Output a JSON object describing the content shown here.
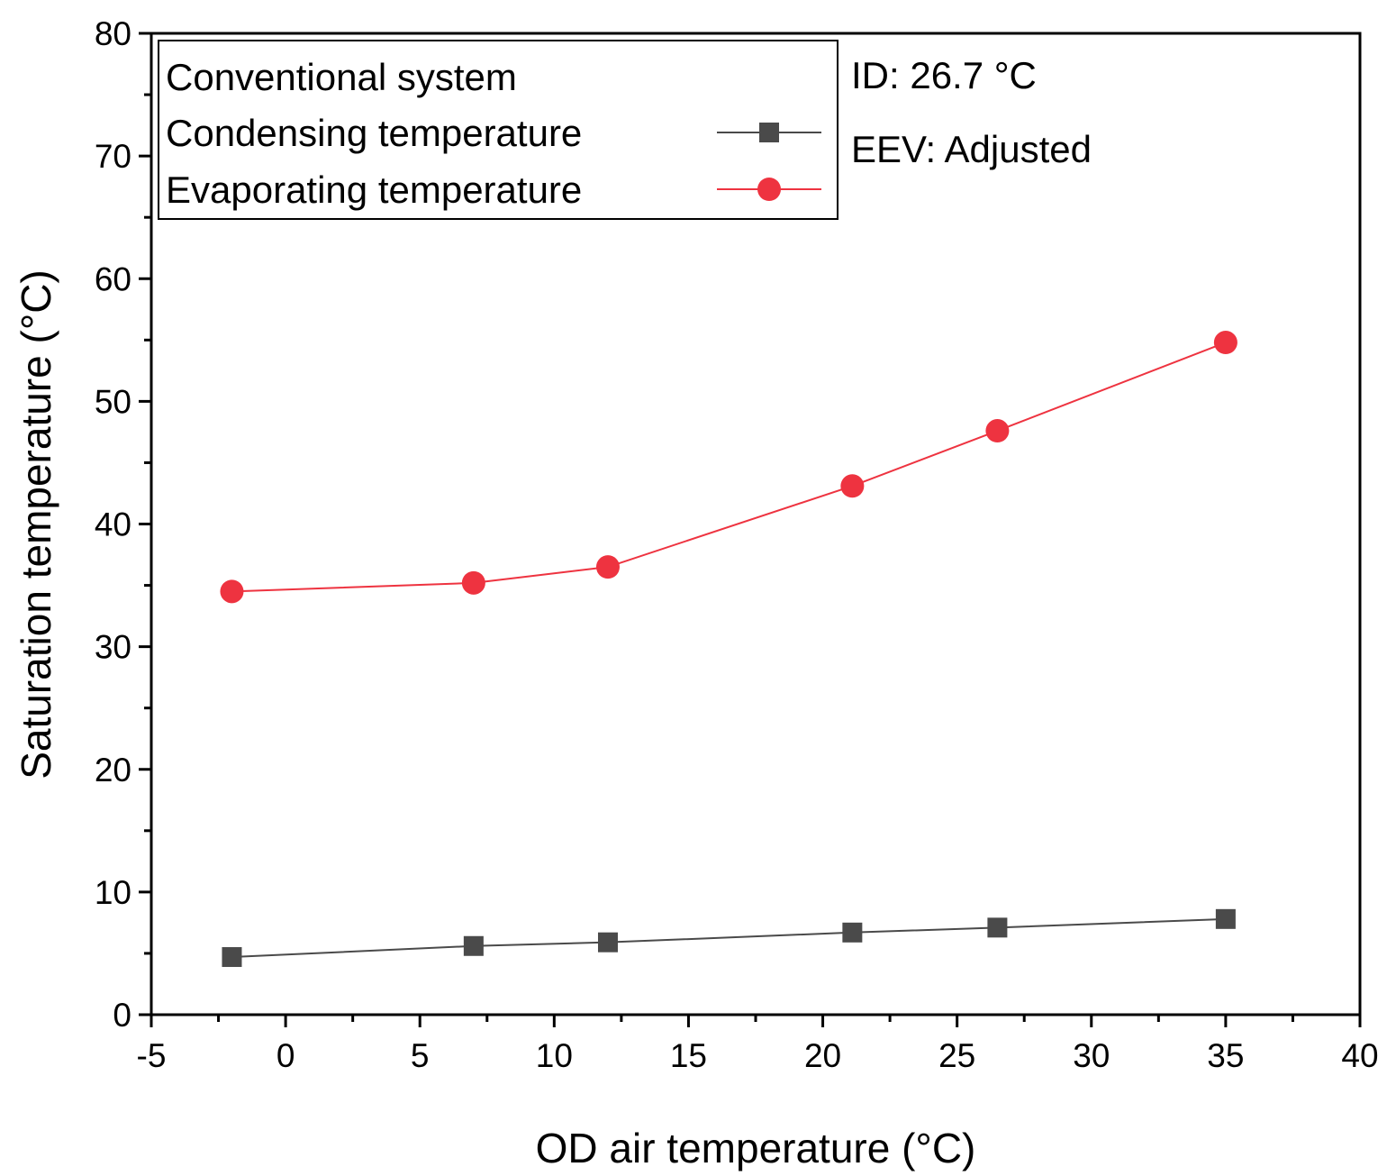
{
  "chart_data": {
    "type": "line",
    "xlabel": "OD air temperature (°C)",
    "ylabel": "Saturation temperature (°C)",
    "xlim": [
      -5,
      40
    ],
    "ylim": [
      0,
      80
    ],
    "xticks": [
      -5,
      0,
      5,
      10,
      15,
      20,
      25,
      30,
      35,
      40
    ],
    "yticks": [
      0,
      10,
      20,
      30,
      40,
      50,
      60,
      70,
      80
    ],
    "x_tick_labels": [
      "-5",
      "0",
      "5",
      "10",
      "15",
      "20",
      "25",
      "30",
      "35",
      "40"
    ],
    "y_tick_labels": [
      "0",
      "10",
      "20",
      "30",
      "40",
      "50",
      "60",
      "70",
      "80"
    ],
    "grid": false,
    "legend": {
      "title": "Conventional system",
      "placement": "top-left"
    },
    "annotations": [
      "ID: 26.7 °C",
      "EEV: Adjusted"
    ],
    "series": [
      {
        "name": "Condensing temperature",
        "marker": "square",
        "color": "#4a4a4a",
        "x": [
          -2,
          7,
          12,
          21.1,
          26.5,
          35
        ],
        "y": [
          4.7,
          5.6,
          5.9,
          6.7,
          7.1,
          7.8
        ]
      },
      {
        "name": "Evaporating temperature",
        "marker": "circle",
        "color": "#ee3340",
        "x": [
          -2,
          7,
          12,
          21.1,
          26.5,
          35
        ],
        "y": [
          34.5,
          35.2,
          36.5,
          43.1,
          47.6,
          54.8
        ]
      }
    ]
  }
}
